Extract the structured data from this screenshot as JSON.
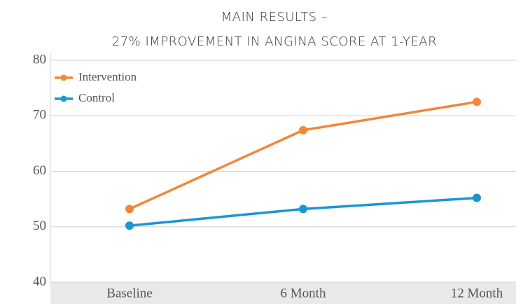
{
  "chart_data": {
    "type": "line",
    "title": [
      "MAIN RESULTS –",
      "27% IMPROVEMENT IN ANGINA SCORE AT 1-YEAR"
    ],
    "categories": [
      "Baseline",
      "6 Month",
      "12 Month"
    ],
    "series": [
      {
        "name": "Intervention",
        "color": "#f0883a",
        "values": [
          53.2,
          67.4,
          72.5
        ]
      },
      {
        "name": "Control",
        "color": "#1b96d4",
        "values": [
          50.2,
          53.2,
          55.2
        ]
      }
    ],
    "ylim": [
      40,
      80
    ],
    "yticks": [
      40,
      50,
      60,
      70,
      80
    ],
    "grid": true,
    "legend": "top-left"
  }
}
